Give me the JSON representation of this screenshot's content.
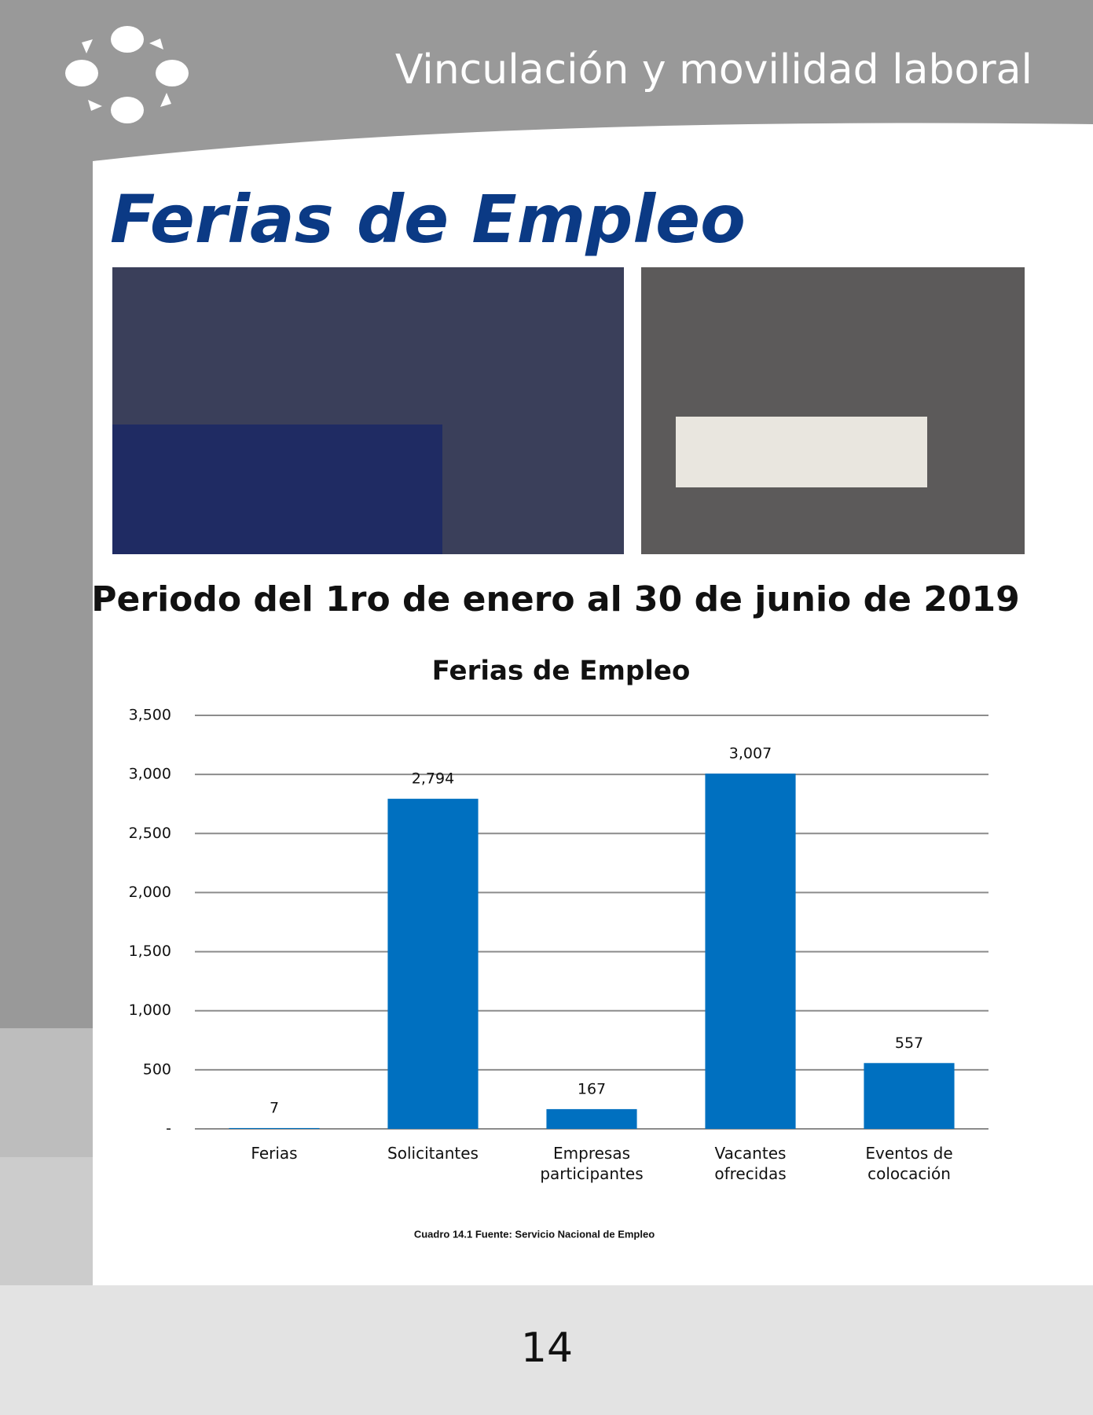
{
  "header": {
    "title": "Vinculación y movilidad laboral"
  },
  "page_title": "Ferias de Empleo",
  "subtitle": "Periodo del 1ro de enero al 30 de junio de 2019",
  "chart_data": {
    "type": "bar",
    "title": "Ferias de Empleo",
    "categories": [
      "Ferias",
      "Solicitantes",
      "Empresas participantes",
      "Vacantes ofrecidas",
      "Eventos de colocación"
    ],
    "values": [
      7,
      2794,
      167,
      3007,
      557
    ],
    "value_labels": [
      "7",
      "2,794",
      "167",
      "3,007",
      "557"
    ],
    "color": "#0070c0",
    "ylim": [
      0,
      3500
    ],
    "yticks": [
      {
        "value": 0,
        "label": "-"
      },
      500,
      {
        "value": 1000,
        "label": "1,000"
      },
      {
        "value": 1500,
        "label": "1,500"
      },
      {
        "value": 2000,
        "label": "2,000"
      },
      {
        "value": 2500,
        "label": "2,500"
      },
      {
        "value": 3000,
        "label": "3,000"
      },
      {
        "value": 3500,
        "label": "3,500"
      }
    ],
    "grid": true
  },
  "caption": "Cuadro 14.1 Fuente: Servicio Nacional de Empleo",
  "page_number": "14"
}
